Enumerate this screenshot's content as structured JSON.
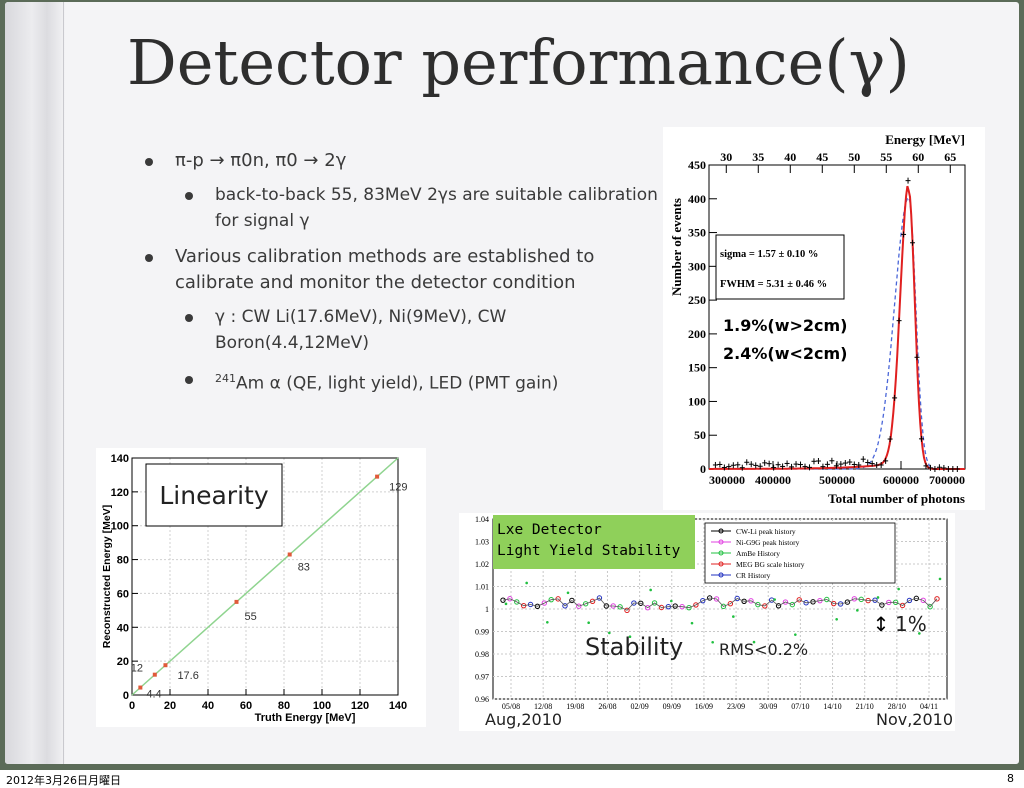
{
  "slide": {
    "title": "Detector performance(γ)",
    "bullets": [
      {
        "level": 1,
        "text": "π-p → π0n, π0 → 2γ"
      },
      {
        "level": 2,
        "text": "back-to-back 55, 83MeV 2γs are suitable calibration for signal γ"
      },
      {
        "level": 1,
        "text": "Various calibration methods are established to calibrate and monitor the detector condition"
      },
      {
        "level": 2,
        "text": "γ : CW Li(17.6MeV), Ni(9MeV), CW Boron(4.4,12MeV)"
      },
      {
        "level": 2,
        "sup": "241",
        "text": "Am α (QE, light yield), LED (PMT gain)"
      }
    ]
  },
  "footer": {
    "date": "2012年3月26日月曜日",
    "page": "8"
  },
  "chart_data": [
    {
      "type": "scatter",
      "title": "Linearity",
      "xlabel": "Truth Energy [MeV]",
      "ylabel": "Reconstructed Energy [MeV]",
      "xlim": [
        0,
        140
      ],
      "ylim": [
        0,
        140
      ],
      "xticks": [
        0,
        20,
        40,
        60,
        80,
        100,
        120,
        140
      ],
      "yticks": [
        0,
        20,
        40,
        60,
        80,
        100,
        120,
        140
      ],
      "points": [
        {
          "x": 4.4,
          "y": 4.4,
          "label": "4.4"
        },
        {
          "x": 12,
          "y": 12,
          "label": "12"
        },
        {
          "x": 17.6,
          "y": 17.6,
          "label": "17.6"
        },
        {
          "x": 55,
          "y": 55,
          "label": "55"
        },
        {
          "x": 83,
          "y": 83,
          "label": "83"
        },
        {
          "x": 129,
          "y": 129,
          "label": "129"
        }
      ],
      "fit_line": [
        [
          0,
          0
        ],
        [
          140,
          140
        ]
      ],
      "colors": {
        "points": "#e05a3a",
        "line": "#8fd48f"
      }
    },
    {
      "type": "line",
      "xlabel": "Total number of photons",
      "ylabel": "Number of events",
      "top_axis_label": "Energy [MeV]",
      "xlim": [
        300000,
        700000
      ],
      "ylim": [
        0,
        450
      ],
      "xticks": [
        300000,
        400000,
        500000,
        600000,
        700000
      ],
      "yticks": [
        0,
        50,
        100,
        150,
        200,
        250,
        300,
        350,
        400,
        450
      ],
      "top_ticks": [
        30,
        35,
        40,
        45,
        50,
        55,
        60,
        65
      ],
      "top_range": [
        27.3,
        67.3
      ],
      "stats": [
        "sigma = 1.57 ± 0.10 %",
        "FWHM = 5.31 ± 0.46 %"
      ],
      "annotations": [
        "1.9%(w>2cm)",
        "2.4%(w<2cm)"
      ],
      "peak": {
        "center": 612000,
        "height": 412
      },
      "colors": {
        "fit": "#e02020",
        "dashed": "#4a66d8",
        "data": "#000000"
      }
    },
    {
      "type": "scatter",
      "title": "Lxe Detector Light Yield Stability",
      "x_ticklabels": [
        "05/08",
        "12/08",
        "19/08",
        "26/08",
        "02/09",
        "09/09",
        "16/09",
        "23/09",
        "30/09",
        "07/10",
        "14/10",
        "21/10",
        "28/10",
        "04/11"
      ],
      "yticks": [
        0.96,
        0.97,
        0.98,
        0.99,
        1,
        1.01,
        1.02,
        1.03,
        1.04
      ],
      "ylim": [
        0.96,
        1.04
      ],
      "legend": [
        "CW-Li peak history",
        "Ni-G9G peak history",
        "AmBe History",
        "MEG BG scale history",
        "CR History"
      ],
      "legend_position": "top-right",
      "stability_label": "Stability",
      "rms_label": "RMS<0.2%",
      "band_label": "1%",
      "start_label": "Aug,2010",
      "end_label": "Nov,2010",
      "colors": {
        "title_bg": "#8fd05a",
        "cw": "#000000",
        "ni": "#e040e0",
        "ambe": "#20c040",
        "meg": "#e02020",
        "cr": "#2030c0"
      }
    }
  ]
}
